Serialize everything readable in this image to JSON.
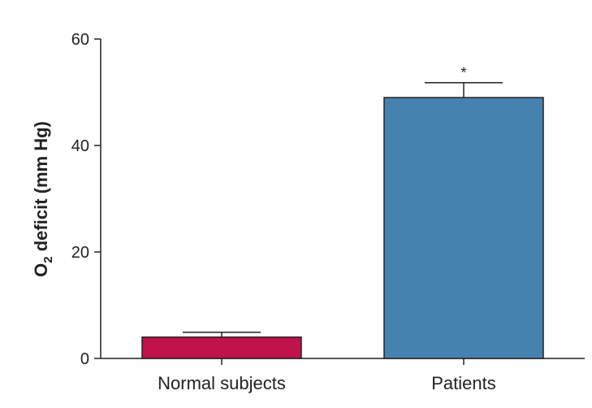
{
  "chart_data": {
    "type": "bar",
    "categories": [
      "Normal subjects",
      "Patients"
    ],
    "values": [
      4,
      49
    ],
    "errors": [
      0.9,
      2.8
    ],
    "colors": [
      "#c0124b",
      "#4682b0"
    ],
    "annotations": [
      "",
      "*"
    ],
    "ylabel_main": "O",
    "ylabel_sub": "2",
    "ylabel_rest": " deficit (mm Hg)",
    "ylim": [
      0,
      60
    ],
    "yticks": [
      0,
      20,
      40,
      60
    ],
    "ytick_labels": [
      "0",
      "20",
      "40",
      "60"
    ],
    "grid": false
  }
}
